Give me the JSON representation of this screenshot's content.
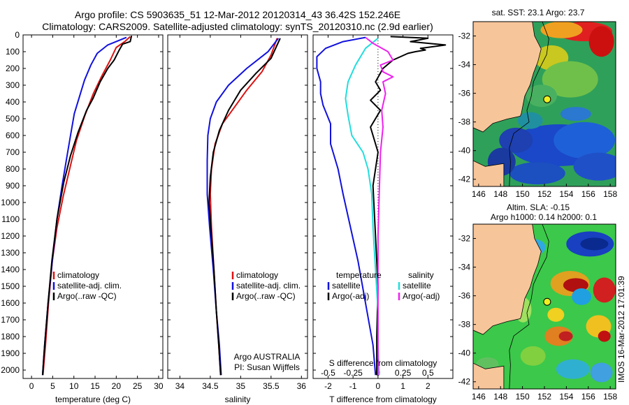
{
  "header": {
    "line1": "Argo profile: CS 5903635_51 12-Mar-2012 20120314_43 36.42S 152.246E",
    "line2": "Climatology: CARS2009. Satellite-adjusted climatology: synTS_20120310.nc (2.9d earlier)"
  },
  "credit": "IMOS 16-Mar-2012 17:01:39",
  "colors": {
    "climatology": "#dd1111",
    "satellite": "#1111dd",
    "argo": "#000000",
    "sal_satellite": "#22dddd",
    "sal_argo": "#ee22ee",
    "land": "#f7c59a"
  },
  "chart_data": [
    {
      "type": "line",
      "xlabel": "temperature (deg C)",
      "ylabel": "",
      "xlim": [
        -2,
        31
      ],
      "ylim": [
        2050,
        0
      ],
      "xticks": [
        "0",
        "5",
        "10",
        "15",
        "20",
        "25",
        "30"
      ],
      "yticks": [
        "0",
        "100",
        "200",
        "300",
        "400",
        "500",
        "600",
        "700",
        "800",
        "900",
        "1000",
        "1100",
        "1200",
        "1300",
        "1400",
        "1500",
        "1600",
        "1700",
        "1800",
        "1900",
        "2000"
      ],
      "legend": [
        "climatology",
        "satellite-adj. clim.",
        "Argo(..raw -QC)"
      ],
      "series": [
        {
          "name": "climatology",
          "color": "#dd1111",
          "points": [
            [
              23.3,
              10
            ],
            [
              22,
              40
            ],
            [
              20,
              75
            ],
            [
              18.6,
              150
            ],
            [
              16.5,
              250
            ],
            [
              14.6,
              350
            ],
            [
              12.6,
              480
            ],
            [
              10.6,
              630
            ],
            [
              9,
              800
            ],
            [
              7.5,
              960
            ],
            [
              6,
              1150
            ],
            [
              4.9,
              1350
            ],
            [
              4,
              1600
            ],
            [
              3.3,
              1850
            ],
            [
              2.7,
              2030
            ]
          ]
        },
        {
          "name": "satellite-adj. clim.",
          "color": "#1111dd",
          "points": [
            [
              22.4,
              15
            ],
            [
              18,
              60
            ],
            [
              15.5,
              110
            ],
            [
              14,
              180
            ],
            [
              12.5,
              270
            ],
            [
              11.3,
              370
            ],
            [
              10.1,
              470
            ],
            [
              9.2,
              600
            ],
            [
              8.2,
              750
            ],
            [
              7.2,
              900
            ],
            [
              6,
              1100
            ],
            [
              4.9,
              1350
            ],
            [
              3.9,
              1600
            ],
            [
              3.1,
              1850
            ],
            [
              2.6,
              2030
            ]
          ]
        },
        {
          "name": "Argo(..raw -QC)",
          "color": "#000000",
          "points": [
            [
              23.6,
              5
            ],
            [
              23.3,
              40
            ],
            [
              21.5,
              55
            ],
            [
              20.6,
              95
            ],
            [
              19.5,
              150
            ],
            [
              18,
              200
            ],
            [
              16.2,
              280
            ],
            [
              14.5,
              380
            ],
            [
              13,
              450
            ],
            [
              11,
              580
            ],
            [
              9.2,
              720
            ],
            [
              7.6,
              880
            ],
            [
              6,
              1100
            ],
            [
              4.8,
              1350
            ],
            [
              3.9,
              1600
            ],
            [
              3.1,
              1850
            ],
            [
              2.6,
              2030
            ]
          ]
        }
      ]
    },
    {
      "type": "line",
      "xlabel": "salinity",
      "xlim": [
        33.8,
        36.1
      ],
      "ylim": [
        2050,
        0
      ],
      "xticks": [
        "34",
        "34.5",
        "35",
        "35.5",
        "36"
      ],
      "legend": [
        "climatology",
        "satellite-adj. clim.",
        "Argo(..raw -QC)"
      ],
      "annotation": [
        "Argo AUSTRALIA",
        "PI: Susan Wijffels"
      ],
      "series": [
        {
          "name": "climatology",
          "color": "#dd1111",
          "points": [
            [
              35.6,
              20
            ],
            [
              35.5,
              120
            ],
            [
              35.35,
              220
            ],
            [
              35.1,
              330
            ],
            [
              34.9,
              430
            ],
            [
              34.7,
              530
            ],
            [
              34.58,
              650
            ],
            [
              34.52,
              800
            ],
            [
              34.5,
              950
            ],
            [
              34.52,
              1150
            ],
            [
              34.56,
              1400
            ],
            [
              34.6,
              1650
            ],
            [
              34.64,
              1850
            ],
            [
              34.67,
              2030
            ]
          ]
        },
        {
          "name": "satellite-adj. clim.",
          "color": "#1111dd",
          "points": [
            [
              35.62,
              20
            ],
            [
              35.45,
              100
            ],
            [
              35.1,
              200
            ],
            [
              34.8,
              300
            ],
            [
              34.6,
              400
            ],
            [
              34.5,
              500
            ],
            [
              34.46,
              600
            ],
            [
              34.45,
              750
            ],
            [
              34.45,
              950
            ],
            [
              34.49,
              1150
            ],
            [
              34.55,
              1400
            ],
            [
              34.6,
              1650
            ],
            [
              34.65,
              1850
            ],
            [
              34.68,
              2030
            ]
          ]
        },
        {
          "name": "Argo(..raw -QC)",
          "color": "#000000",
          "points": [
            [
              35.65,
              20
            ],
            [
              35.5,
              140
            ],
            [
              35.25,
              230
            ],
            [
              35.0,
              330
            ],
            [
              34.8,
              450
            ],
            [
              34.65,
              570
            ],
            [
              34.55,
              700
            ],
            [
              34.5,
              850
            ],
            [
              34.48,
              1000
            ],
            [
              34.52,
              1200
            ],
            [
              34.56,
              1400
            ],
            [
              34.6,
              1650
            ],
            [
              34.64,
              1850
            ],
            [
              34.67,
              2030
            ]
          ]
        }
      ]
    },
    {
      "type": "line",
      "xlabel": "T difference from climatology",
      "xlabel2": "S difference from climatology",
      "xlim": [
        -2.6,
        3
      ],
      "ylim": [
        2050,
        0
      ],
      "xticks": [
        "-2",
        "-1",
        "0",
        "1",
        "2"
      ],
      "xticks_s": [
        "-0.5",
        "-0.25",
        "0",
        "0.25",
        "0.5"
      ],
      "legend_titles": [
        "temperature",
        "salinity"
      ],
      "legend": [
        "satellite",
        "Argo(-adj)",
        "satellite",
        "Argo(-adj)"
      ],
      "series": [
        {
          "name": "satellite",
          "color": "#1111dd",
          "points": [
            [
              -0.5,
              15
            ],
            [
              -1.4,
              40
            ],
            [
              -2.1,
              80
            ],
            [
              -2.45,
              130
            ],
            [
              -2.45,
              200
            ],
            [
              -2.3,
              280
            ],
            [
              -2.3,
              350
            ],
            [
              -2.2,
              420
            ],
            [
              -1.9,
              530
            ],
            [
              -1.9,
              650
            ],
            [
              -1.6,
              800
            ],
            [
              -1.4,
              950
            ],
            [
              -1.1,
              1150
            ],
            [
              -0.8,
              1350
            ],
            [
              -0.5,
              1600
            ],
            [
              -0.2,
              1850
            ],
            [
              -0.1,
              2030
            ]
          ]
        },
        {
          "name": "Argo(-adj)",
          "color": "#000000",
          "points": [
            [
              0.5,
              10
            ],
            [
              2.0,
              20
            ],
            [
              1.3,
              40
            ],
            [
              2.7,
              60
            ],
            [
              1.7,
              80
            ],
            [
              1.9,
              90
            ],
            [
              1.5,
              100
            ],
            [
              1.2,
              110
            ],
            [
              0.6,
              150
            ],
            [
              0.2,
              200
            ],
            [
              -0.1,
              280
            ],
            [
              0.1,
              330
            ],
            [
              -0.3,
              390
            ],
            [
              0.1,
              450
            ],
            [
              -0.3,
              550
            ],
            [
              0,
              700
            ],
            [
              -0.2,
              900
            ],
            [
              -0.1,
              1200
            ],
            [
              0,
              1500
            ],
            [
              -0.05,
              1800
            ],
            [
              -0.05,
              2030
            ]
          ]
        },
        {
          "name": "S satellite",
          "color": "#22dddd",
          "points": [
            [
              0,
              20
            ],
            [
              -0.5,
              80
            ],
            [
              -0.9,
              180
            ],
            [
              -1.2,
              280
            ],
            [
              -1.3,
              380
            ],
            [
              -1.2,
              480
            ],
            [
              -1.05,
              600
            ],
            [
              -0.6,
              700
            ],
            [
              -0.4,
              800
            ],
            [
              -0.25,
              950
            ],
            [
              -0.2,
              1150
            ],
            [
              -0.1,
              1400
            ],
            [
              0,
              1650
            ],
            [
              0,
              1850
            ],
            [
              0.05,
              2030
            ]
          ]
        },
        {
          "name": "S Argo(-adj)",
          "color": "#ee22ee",
          "points": [
            [
              -0.5,
              15
            ],
            [
              -0.2,
              50
            ],
            [
              0.4,
              100
            ],
            [
              0.6,
              150
            ],
            [
              0.1,
              180
            ],
            [
              0.2,
              220
            ],
            [
              0.6,
              250
            ],
            [
              0.2,
              280
            ],
            [
              0.3,
              350
            ],
            [
              0.15,
              450
            ],
            [
              0.2,
              550
            ],
            [
              0.1,
              700
            ],
            [
              0.05,
              950
            ],
            [
              0,
              1200
            ],
            [
              0,
              1500
            ],
            [
              0,
              1800
            ],
            [
              0,
              2030
            ]
          ]
        }
      ]
    },
    {
      "type": "heatmap",
      "title": "sat. SST: 23.1  Argo: 23.7",
      "xticks": [
        "146",
        "148",
        "150",
        "152",
        "154",
        "156",
        "158"
      ],
      "yticks": [
        "-32",
        "-34",
        "-36",
        "-38",
        "-40",
        "-42"
      ],
      "xlim": [
        145.5,
        158.5
      ],
      "ylim": [
        -42.5,
        -31
      ],
      "float_position": [
        152.246,
        -36.42
      ]
    },
    {
      "type": "heatmap",
      "title": "Altim. SLA: -0.15",
      "subtitle": "Argo h1000: 0.14  h2000: 0.1",
      "xticks": [
        "146",
        "148",
        "150",
        "152",
        "154",
        "156",
        "158"
      ],
      "yticks": [
        "-32",
        "-34",
        "-36",
        "-38",
        "-40",
        "-42"
      ],
      "xlim": [
        145.5,
        158.5
      ],
      "ylim": [
        -42.5,
        -31
      ],
      "float_position": [
        152.246,
        -36.42
      ]
    }
  ]
}
